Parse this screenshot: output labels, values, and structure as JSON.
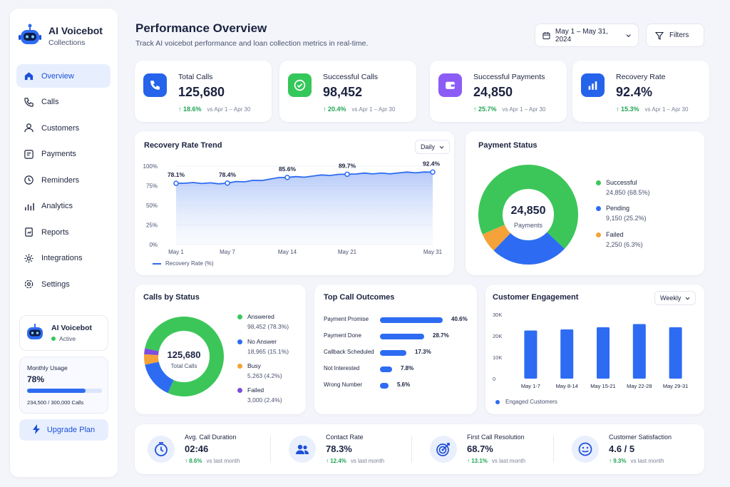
{
  "brand": {
    "title": "AI Voicebot",
    "subtitle": "Collections"
  },
  "nav": [
    {
      "label": "Overview",
      "icon": "home-icon",
      "active": true
    },
    {
      "label": "Calls",
      "icon": "phone-icon"
    },
    {
      "label": "Customers",
      "icon": "users-icon"
    },
    {
      "label": "Payments",
      "icon": "credit-card-icon"
    },
    {
      "label": "Reminders",
      "icon": "clock-icon"
    },
    {
      "label": "Analytics",
      "icon": "bar-chart-icon"
    },
    {
      "label": "Reports",
      "icon": "report-icon"
    },
    {
      "label": "Integrations",
      "icon": "cog-icon"
    },
    {
      "label": "Settings",
      "icon": "settings-icon"
    }
  ],
  "bot": {
    "name": "AI Voicebot",
    "status": "Active"
  },
  "usage": {
    "label": "Monthly Usage",
    "percent_text": "78%",
    "fraction": 0.78,
    "calls": "234,500 / 300,000 Calls"
  },
  "upgrade_label": "Upgrade Plan",
  "header": {
    "title": "Performance Overview",
    "subtitle": "Track AI voicebot performance and loan collection metrics in real-time.",
    "date_range": "May 1 – May 31, 2024",
    "filters_label": "Filters"
  },
  "kpis": [
    {
      "label": "Total Calls",
      "value": "125,680",
      "delta": "↑ 18.6%",
      "vs": "vs Apr 1 – Apr 30",
      "icon": "phone-icon",
      "color": "#2563eb"
    },
    {
      "label": "Successful Calls",
      "value": "98,452",
      "delta": "↑ 20.4%",
      "vs": "vs Apr 1 – Apr 30",
      "icon": "check-circle-icon",
      "color": "#34c759"
    },
    {
      "label": "Successful Payments",
      "value": "24,850",
      "delta": "↑ 25.7%",
      "vs": "vs Apr 1 – Apr 30",
      "icon": "wallet-icon",
      "color": "#8b5cf6"
    },
    {
      "label": "Recovery Rate",
      "value": "92.4%",
      "delta": "↑ 15.3%",
      "vs": "vs Apr 1 – Apr 30",
      "icon": "bar-chart-icon",
      "color": "#2563eb"
    }
  ],
  "trend": {
    "title": "Recovery Rate Trend",
    "period": "Daily",
    "legend": "Recovery Rate (%)",
    "y_ticks": [
      "100%",
      "75%",
      "50%",
      "25%",
      "0%"
    ],
    "x_ticks": [
      "May 1",
      "May 7",
      "May 14",
      "May 21",
      "May 31"
    ],
    "labels": [
      "78.1%",
      "78.4%",
      "85.6%",
      "89.7%",
      "92.4%"
    ]
  },
  "payment_status": {
    "title": "Payment Status",
    "center_value": "24,850",
    "center_label": "Payments",
    "items": [
      {
        "label": "Successful",
        "value": "24,850 (68.5%)",
        "color": "#3cc65a"
      },
      {
        "label": "Pending",
        "value": "9,150 (25.2%)",
        "color": "#2d6cf2"
      },
      {
        "label": "Failed",
        "value": "2,250 (6.3%)",
        "color": "#f5a23a"
      }
    ]
  },
  "calls_status": {
    "title": "Calls by Status",
    "center_value": "125,680",
    "center_label": "Total Calls",
    "items": [
      {
        "label": "Answered",
        "value": "98,452 (78.3%)",
        "color": "#3cc65a"
      },
      {
        "label": "No Answer",
        "value": "18,965 (15.1%)",
        "color": "#2d6cf2"
      },
      {
        "label": "Busy",
        "value": "5,263 (4.2%)",
        "color": "#f5a23a"
      },
      {
        "label": "Failed",
        "value": "3,000 (2.4%)",
        "color": "#7c4ddb"
      }
    ]
  },
  "outcomes": {
    "title": "Top Call Outcomes",
    "items": [
      {
        "label": "Payment Promise",
        "pct": "40.6%",
        "value": 40.6
      },
      {
        "label": "Payment Done",
        "pct": "28.7%",
        "value": 28.7
      },
      {
        "label": "Callback Scheduled",
        "pct": "17.3%",
        "value": 17.3
      },
      {
        "label": "Not Interested",
        "pct": "7.8%",
        "value": 7.8
      },
      {
        "label": "Wrong Number",
        "pct": "5.6%",
        "value": 5.6
      }
    ]
  },
  "engagement": {
    "title": "Customer Engagement",
    "period": "Weekly",
    "legend": "Engaged Customers",
    "y_ticks": [
      "30K",
      "20K",
      "10K",
      "0"
    ]
  },
  "bottom": [
    {
      "label": "Avg. Call Duration",
      "value": "02:46",
      "delta": "↑ 8.6%",
      "vs": "vs last month",
      "icon": "timer-icon"
    },
    {
      "label": "Contact Rate",
      "value": "78.3%",
      "delta": "↑ 12.4%",
      "vs": "vs last month",
      "icon": "contacts-icon"
    },
    {
      "label": "First Call Resolution",
      "value": "68.7%",
      "delta": "↑ 13.1%",
      "vs": "vs last month",
      "icon": "target-icon"
    },
    {
      "label": "Customer Satisfaction",
      "value": "4.6 / 5",
      "delta": "↑ 9.3%",
      "vs": "vs last month",
      "icon": "smile-icon"
    }
  ],
  "chart_data": [
    {
      "type": "area",
      "title": "Recovery Rate Trend",
      "series": [
        {
          "name": "Recovery Rate (%)",
          "x": [
            "May 1",
            "May 7",
            "May 14",
            "May 21",
            "May 31"
          ],
          "values": [
            78.1,
            78.4,
            85.6,
            89.7,
            92.4
          ]
        }
      ],
      "ylim": [
        0,
        100
      ],
      "grid": true,
      "legend": "bottom-left"
    },
    {
      "type": "pie",
      "title": "Payment Status",
      "categories": [
        "Successful",
        "Pending",
        "Failed"
      ],
      "values": [
        68.5,
        25.2,
        6.3
      ]
    },
    {
      "type": "pie",
      "title": "Calls by Status",
      "categories": [
        "Answered",
        "No Answer",
        "Busy",
        "Failed"
      ],
      "values": [
        78.3,
        15.1,
        4.2,
        2.4
      ]
    },
    {
      "type": "bar",
      "title": "Top Call Outcomes",
      "categories": [
        "Payment Promise",
        "Payment Done",
        "Callback Scheduled",
        "Not Interested",
        "Wrong Number"
      ],
      "values": [
        40.6,
        28.7,
        17.3,
        7.8,
        5.6
      ]
    },
    {
      "type": "bar",
      "title": "Customer Engagement",
      "categories": [
        "May 1-7",
        "May 8-14",
        "May 15-21",
        "May 22-28",
        "May 29-31"
      ],
      "series": [
        {
          "name": "Engaged Customers",
          "values": [
            22500,
            23000,
            24000,
            25500,
            24000
          ]
        }
      ],
      "ylim": [
        0,
        30000
      ],
      "legend": "bottom-left"
    }
  ]
}
